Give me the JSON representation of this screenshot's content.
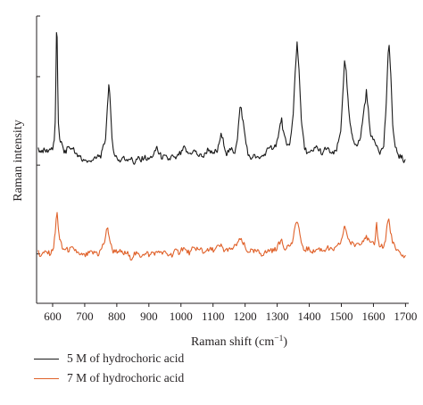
{
  "chart_data": {
    "type": "line",
    "xlabel": "Raman shift (cm",
    "xlabel_sup": "−1",
    "xlabel_close": ")",
    "ylabel": "Raman intensity",
    "xlim": [
      550,
      1710
    ],
    "ylim": [
      0,
      100
    ],
    "x_ticks": [
      600,
      700,
      800,
      900,
      1000,
      1100,
      1200,
      1300,
      1400,
      1500,
      1600,
      1700
    ],
    "y_ticks": [
      0,
      17.2,
      48.1,
      78.9,
      100
    ],
    "y_tick_labels_visible": false,
    "grid": false,
    "legend_position": "bottom-left",
    "series": [
      {
        "name": "5 M of hydrochoric acid",
        "color": "#1a1a1a",
        "peaks": [
          [
            612,
            53,
            5
          ],
          [
            620,
            5,
            10
          ],
          [
            648,
            3,
            6
          ],
          [
            665,
            3,
            5
          ],
          [
            775,
            28,
            7
          ],
          [
            928,
            4,
            6
          ],
          [
            1005,
            2,
            12
          ],
          [
            1035,
            2,
            6
          ],
          [
            1085,
            3,
            8
          ],
          [
            1125,
            7,
            8
          ],
          [
            1158,
            3,
            6
          ],
          [
            1186,
            19,
            9
          ],
          [
            1268,
            3,
            9
          ],
          [
            1293,
            3,
            7
          ],
          [
            1313,
            15,
            6
          ],
          [
            1333,
            3,
            5
          ],
          [
            1362,
            44,
            7
          ],
          [
            1395,
            2,
            6
          ],
          [
            1425,
            4,
            5
          ],
          [
            1455,
            3,
            7
          ],
          [
            1510,
            36,
            8
          ],
          [
            1540,
            8,
            7
          ],
          [
            1578,
            26,
            6
          ],
          [
            1600,
            9,
            5
          ],
          [
            1620,
            4,
            5
          ],
          [
            1648,
            43,
            6
          ],
          [
            1668,
            3,
            6
          ]
        ],
        "points": [
          [
            555,
            54
          ],
          [
            560,
            53.5
          ],
          [
            570,
            53
          ],
          [
            580,
            52.5
          ],
          [
            590,
            53
          ],
          [
            600,
            54
          ],
          [
            605,
            57
          ],
          [
            608,
            64
          ],
          [
            610,
            78
          ],
          [
            612,
            94
          ],
          [
            614,
            92
          ],
          [
            616,
            75
          ],
          [
            618,
            63
          ],
          [
            622,
            58
          ],
          [
            630,
            54
          ],
          [
            640,
            53
          ],
          [
            648,
            55
          ],
          [
            652,
            54
          ],
          [
            660,
            53
          ],
          [
            665,
            54.5
          ],
          [
            672,
            52
          ],
          [
            680,
            50.5
          ],
          [
            700,
            50
          ],
          [
            720,
            50
          ],
          [
            740,
            50.5
          ],
          [
            755,
            52
          ],
          [
            765,
            58
          ],
          [
            772,
            70
          ],
          [
            775,
            76
          ],
          [
            778,
            72
          ],
          [
            785,
            58
          ],
          [
            795,
            51
          ],
          [
            810,
            50
          ],
          [
            830,
            50.5
          ],
          [
            850,
            49.5
          ],
          [
            870,
            50
          ],
          [
            900,
            50.5
          ],
          [
            915,
            51
          ],
          [
            925,
            54
          ],
          [
            930,
            53
          ],
          [
            940,
            50.5
          ],
          [
            960,
            50
          ],
          [
            980,
            51
          ],
          [
            1000,
            52
          ],
          [
            1010,
            53.5
          ],
          [
            1020,
            52
          ],
          [
            1035,
            53
          ],
          [
            1050,
            52
          ],
          [
            1070,
            51.5
          ],
          [
            1085,
            53.5
          ],
          [
            1100,
            51.5
          ],
          [
            1115,
            54
          ],
          [
            1125,
            58
          ],
          [
            1132,
            56
          ],
          [
            1142,
            52
          ],
          [
            1158,
            54
          ],
          [
            1168,
            52
          ],
          [
            1176,
            58
          ],
          [
            1184,
            67
          ],
          [
            1188,
            67.5
          ],
          [
            1195,
            62
          ],
          [
            1203,
            55
          ],
          [
            1215,
            51
          ],
          [
            1240,
            50.5
          ],
          [
            1260,
            52
          ],
          [
            1270,
            54
          ],
          [
            1282,
            53.5
          ],
          [
            1293,
            55
          ],
          [
            1303,
            57
          ],
          [
            1310,
            63.5
          ],
          [
            1314,
            64
          ],
          [
            1320,
            59
          ],
          [
            1330,
            55
          ],
          [
            1340,
            56
          ],
          [
            1350,
            65
          ],
          [
            1356,
            80
          ],
          [
            1362,
            91
          ],
          [
            1368,
            82
          ],
          [
            1375,
            63
          ],
          [
            1385,
            54
          ],
          [
            1395,
            53
          ],
          [
            1410,
            52
          ],
          [
            1425,
            55
          ],
          [
            1430,
            53
          ],
          [
            1440,
            52
          ],
          [
            1455,
            54
          ],
          [
            1470,
            52
          ],
          [
            1485,
            53
          ],
          [
            1498,
            60
          ],
          [
            1505,
            75
          ],
          [
            1510,
            84
          ],
          [
            1515,
            80
          ],
          [
            1522,
            68
          ],
          [
            1532,
            58
          ],
          [
            1540,
            56
          ],
          [
            1550,
            55
          ],
          [
            1560,
            58
          ],
          [
            1570,
            67
          ],
          [
            1578,
            74
          ],
          [
            1585,
            66
          ],
          [
            1592,
            58
          ],
          [
            1600,
            57
          ],
          [
            1610,
            55
          ],
          [
            1620,
            53
          ],
          [
            1632,
            55
          ],
          [
            1640,
            70
          ],
          [
            1646,
            86
          ],
          [
            1649,
            89
          ],
          [
            1654,
            80
          ],
          [
            1660,
            62
          ],
          [
            1668,
            53.5
          ],
          [
            1680,
            51.5
          ],
          [
            1690,
            50.5
          ],
          [
            1700,
            50
          ]
        ]
      },
      {
        "name": "7 M of hydrochoric acid",
        "color": "#e0622b",
        "peaks": [
          [
            612,
            16,
            5
          ],
          [
            660,
            2,
            6
          ],
          [
            770,
            8,
            7
          ],
          [
            930,
            1,
            6
          ],
          [
            1050,
            1.5,
            8
          ],
          [
            1120,
            2,
            7
          ],
          [
            1185,
            4,
            8
          ],
          [
            1295,
            1.5,
            7
          ],
          [
            1313,
            4,
            6
          ],
          [
            1362,
            11,
            7
          ],
          [
            1455,
            1.5,
            6
          ],
          [
            1510,
            9,
            7
          ],
          [
            1540,
            2,
            6
          ],
          [
            1575,
            5,
            6
          ],
          [
            1610,
            10,
            3
          ],
          [
            1648,
            11,
            6
          ]
        ],
        "points": [
          [
            555,
            17.5
          ],
          [
            565,
            17
          ],
          [
            580,
            17
          ],
          [
            595,
            17.5
          ],
          [
            603,
            19
          ],
          [
            608,
            25
          ],
          [
            611,
            30
          ],
          [
            614,
            32
          ],
          [
            617,
            28
          ],
          [
            622,
            22
          ],
          [
            632,
            18.5
          ],
          [
            645,
            18
          ],
          [
            660,
            19.5
          ],
          [
            675,
            17.5
          ],
          [
            690,
            17
          ],
          [
            710,
            17
          ],
          [
            730,
            17.5
          ],
          [
            750,
            18
          ],
          [
            762,
            21
          ],
          [
            768,
            25
          ],
          [
            772,
            26
          ],
          [
            778,
            22
          ],
          [
            788,
            18.5
          ],
          [
            805,
            17.5
          ],
          [
            830,
            17
          ],
          [
            850,
            16.5
          ],
          [
            870,
            17
          ],
          [
            890,
            17.5
          ],
          [
            910,
            17
          ],
          [
            930,
            18
          ],
          [
            950,
            17.5
          ],
          [
            970,
            17
          ],
          [
            990,
            18
          ],
          [
            1010,
            18.5
          ],
          [
            1030,
            18
          ],
          [
            1050,
            19
          ],
          [
            1070,
            18
          ],
          [
            1090,
            18.5
          ],
          [
            1110,
            19
          ],
          [
            1125,
            20
          ],
          [
            1140,
            18.5
          ],
          [
            1160,
            18.5
          ],
          [
            1178,
            21
          ],
          [
            1185,
            22.5
          ],
          [
            1193,
            21
          ],
          [
            1205,
            18.5
          ],
          [
            1225,
            18
          ],
          [
            1245,
            17.5
          ],
          [
            1265,
            18
          ],
          [
            1285,
            18
          ],
          [
            1298,
            19
          ],
          [
            1308,
            21
          ],
          [
            1314,
            22.5
          ],
          [
            1320,
            20
          ],
          [
            1333,
            19
          ],
          [
            1345,
            20
          ],
          [
            1352,
            24
          ],
          [
            1358,
            28
          ],
          [
            1362,
            29.5
          ],
          [
            1368,
            26
          ],
          [
            1375,
            21
          ],
          [
            1385,
            18.5
          ],
          [
            1400,
            18
          ],
          [
            1420,
            19
          ],
          [
            1440,
            18.5
          ],
          [
            1455,
            19.5
          ],
          [
            1470,
            18.5
          ],
          [
            1490,
            19.5
          ],
          [
            1500,
            22
          ],
          [
            1506,
            25
          ],
          [
            1511,
            27
          ],
          [
            1517,
            25
          ],
          [
            1526,
            21.5
          ],
          [
            1535,
            21
          ],
          [
            1545,
            20
          ],
          [
            1555,
            21
          ],
          [
            1565,
            22
          ],
          [
            1574,
            23.5
          ],
          [
            1583,
            22
          ],
          [
            1595,
            20
          ],
          [
            1603,
            20
          ],
          [
            1607,
            24
          ],
          [
            1610,
            28.5
          ],
          [
            1613,
            24
          ],
          [
            1618,
            20
          ],
          [
            1628,
            19.5
          ],
          [
            1637,
            22
          ],
          [
            1643,
            27
          ],
          [
            1648,
            29
          ],
          [
            1653,
            26
          ],
          [
            1660,
            21
          ],
          [
            1670,
            18.5
          ],
          [
            1685,
            17
          ],
          [
            1700,
            16.5
          ]
        ]
      }
    ]
  }
}
